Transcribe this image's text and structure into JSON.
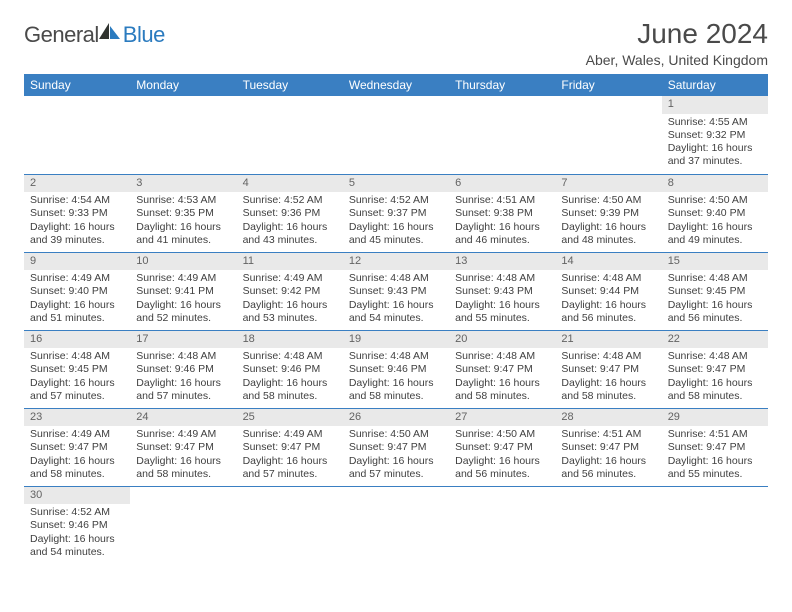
{
  "logo": {
    "part1": "General",
    "part2": "Blue"
  },
  "title": "June 2024",
  "subtitle": "Aber, Wales, United Kingdom",
  "colors": {
    "header_bg": "#3a7fc2",
    "header_text": "#ffffff",
    "daynum_bg": "#e9e9e9",
    "daynum_text": "#636363",
    "body_text": "#404040",
    "rule": "#3a7fc2",
    "logo_dark": "#4a4a4a",
    "logo_blue": "#2b7bbf"
  },
  "dayHeaders": [
    "Sunday",
    "Monday",
    "Tuesday",
    "Wednesday",
    "Thursday",
    "Friday",
    "Saturday"
  ],
  "startDayIndex": 6,
  "daysInMonth": 30,
  "days": {
    "1": {
      "sunrise": "4:55 AM",
      "sunset": "9:32 PM",
      "dl_h": 16,
      "dl_m": 37
    },
    "2": {
      "sunrise": "4:54 AM",
      "sunset": "9:33 PM",
      "dl_h": 16,
      "dl_m": 39
    },
    "3": {
      "sunrise": "4:53 AM",
      "sunset": "9:35 PM",
      "dl_h": 16,
      "dl_m": 41
    },
    "4": {
      "sunrise": "4:52 AM",
      "sunset": "9:36 PM",
      "dl_h": 16,
      "dl_m": 43
    },
    "5": {
      "sunrise": "4:52 AM",
      "sunset": "9:37 PM",
      "dl_h": 16,
      "dl_m": 45
    },
    "6": {
      "sunrise": "4:51 AM",
      "sunset": "9:38 PM",
      "dl_h": 16,
      "dl_m": 46
    },
    "7": {
      "sunrise": "4:50 AM",
      "sunset": "9:39 PM",
      "dl_h": 16,
      "dl_m": 48
    },
    "8": {
      "sunrise": "4:50 AM",
      "sunset": "9:40 PM",
      "dl_h": 16,
      "dl_m": 49
    },
    "9": {
      "sunrise": "4:49 AM",
      "sunset": "9:40 PM",
      "dl_h": 16,
      "dl_m": 51
    },
    "10": {
      "sunrise": "4:49 AM",
      "sunset": "9:41 PM",
      "dl_h": 16,
      "dl_m": 52
    },
    "11": {
      "sunrise": "4:49 AM",
      "sunset": "9:42 PM",
      "dl_h": 16,
      "dl_m": 53
    },
    "12": {
      "sunrise": "4:48 AM",
      "sunset": "9:43 PM",
      "dl_h": 16,
      "dl_m": 54
    },
    "13": {
      "sunrise": "4:48 AM",
      "sunset": "9:43 PM",
      "dl_h": 16,
      "dl_m": 55
    },
    "14": {
      "sunrise": "4:48 AM",
      "sunset": "9:44 PM",
      "dl_h": 16,
      "dl_m": 56
    },
    "15": {
      "sunrise": "4:48 AM",
      "sunset": "9:45 PM",
      "dl_h": 16,
      "dl_m": 56
    },
    "16": {
      "sunrise": "4:48 AM",
      "sunset": "9:45 PM",
      "dl_h": 16,
      "dl_m": 57
    },
    "17": {
      "sunrise": "4:48 AM",
      "sunset": "9:46 PM",
      "dl_h": 16,
      "dl_m": 57
    },
    "18": {
      "sunrise": "4:48 AM",
      "sunset": "9:46 PM",
      "dl_h": 16,
      "dl_m": 58
    },
    "19": {
      "sunrise": "4:48 AM",
      "sunset": "9:46 PM",
      "dl_h": 16,
      "dl_m": 58
    },
    "20": {
      "sunrise": "4:48 AM",
      "sunset": "9:47 PM",
      "dl_h": 16,
      "dl_m": 58
    },
    "21": {
      "sunrise": "4:48 AM",
      "sunset": "9:47 PM",
      "dl_h": 16,
      "dl_m": 58
    },
    "22": {
      "sunrise": "4:48 AM",
      "sunset": "9:47 PM",
      "dl_h": 16,
      "dl_m": 58
    },
    "23": {
      "sunrise": "4:49 AM",
      "sunset": "9:47 PM",
      "dl_h": 16,
      "dl_m": 58
    },
    "24": {
      "sunrise": "4:49 AM",
      "sunset": "9:47 PM",
      "dl_h": 16,
      "dl_m": 58
    },
    "25": {
      "sunrise": "4:49 AM",
      "sunset": "9:47 PM",
      "dl_h": 16,
      "dl_m": 57
    },
    "26": {
      "sunrise": "4:50 AM",
      "sunset": "9:47 PM",
      "dl_h": 16,
      "dl_m": 57
    },
    "27": {
      "sunrise": "4:50 AM",
      "sunset": "9:47 PM",
      "dl_h": 16,
      "dl_m": 56
    },
    "28": {
      "sunrise": "4:51 AM",
      "sunset": "9:47 PM",
      "dl_h": 16,
      "dl_m": 56
    },
    "29": {
      "sunrise": "4:51 AM",
      "sunset": "9:47 PM",
      "dl_h": 16,
      "dl_m": 55
    },
    "30": {
      "sunrise": "4:52 AM",
      "sunset": "9:46 PM",
      "dl_h": 16,
      "dl_m": 54
    }
  },
  "labels": {
    "sunrise": "Sunrise:",
    "sunset": "Sunset:",
    "daylight_prefix": "Daylight:",
    "hours_word": "hours",
    "and_word": "and",
    "minutes_word": "minutes."
  }
}
